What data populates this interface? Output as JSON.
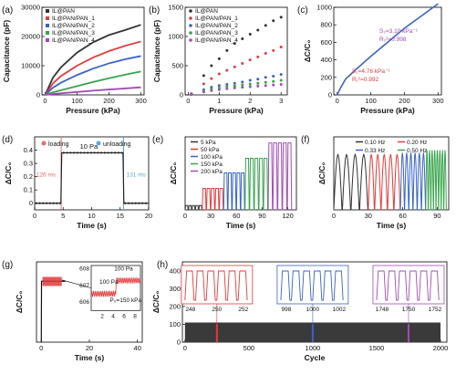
{
  "colors": {
    "black": "#333333",
    "red": "#e23b3b",
    "blue": "#3a63c6",
    "green": "#38a44c",
    "purple": "#a24ab8",
    "bg_band": "#e8e8e8"
  },
  "chart_data": [
    {
      "id": "a",
      "panel_label": "(a)",
      "type": "line",
      "xlabel": "Pressure (kPa)",
      "ylabel": "Capacitance (pF)",
      "xlim": [
        -10,
        310
      ],
      "ylim": [
        0,
        30000
      ],
      "xticks": [
        0,
        100,
        200,
        300
      ],
      "yticks": [
        0,
        10000,
        20000,
        30000
      ],
      "series": [
        {
          "name": "IL@PAN",
          "color": "black",
          "x": [
            0,
            25,
            50,
            100,
            150,
            200,
            250,
            300
          ],
          "y": [
            0,
            6000,
            9500,
            14500,
            18000,
            20500,
            22200,
            24000
          ]
        },
        {
          "name": "IL@PAN/PAN_1",
          "color": "red",
          "x": [
            0,
            25,
            50,
            100,
            150,
            200,
            250,
            300
          ],
          "y": [
            0,
            4000,
            6500,
            10000,
            12800,
            15000,
            16800,
            18300
          ]
        },
        {
          "name": "IL@PAN/PAN_2",
          "color": "blue",
          "x": [
            0,
            25,
            50,
            100,
            150,
            200,
            250,
            300
          ],
          "y": [
            0,
            2500,
            4200,
            6800,
            9000,
            10800,
            12200,
            13300
          ]
        },
        {
          "name": "IL@PAN/PAN_3",
          "color": "green",
          "x": [
            0,
            25,
            50,
            100,
            150,
            200,
            250,
            300
          ],
          "y": [
            0,
            900,
            1600,
            3000,
            4400,
            5700,
            6900,
            8000
          ]
        },
        {
          "name": "IL@PAN/PAN_4",
          "color": "purple",
          "x": [
            0,
            25,
            50,
            100,
            150,
            200,
            250,
            300
          ],
          "y": [
            0,
            300,
            550,
            1000,
            1450,
            1850,
            2200,
            2600
          ]
        }
      ]
    },
    {
      "id": "b",
      "panel_label": "(b)",
      "type": "scatter",
      "xlabel": "Pressure (kPa)",
      "ylabel": "Capacitance (pF)",
      "xlim": [
        -0.1,
        3.2
      ],
      "ylim": [
        0,
        1500
      ],
      "xticks": [
        0,
        1,
        2,
        3
      ],
      "yticks": [
        0,
        500,
        1000,
        1500
      ],
      "series": [
        {
          "name": "IL@PAN",
          "color": "black",
          "x": [
            0.1,
            0.5,
            0.75,
            1,
            1.25,
            1.5,
            1.75,
            2,
            2.25,
            2.5,
            2.75,
            3
          ],
          "y": [
            20,
            330,
            500,
            620,
            760,
            880,
            960,
            1040,
            1110,
            1190,
            1270,
            1330
          ]
        },
        {
          "name": "IL@PAN/PAN_1",
          "color": "red",
          "x": [
            0.1,
            0.5,
            0.75,
            1,
            1.25,
            1.5,
            1.75,
            2,
            2.25,
            2.5,
            2.75,
            3
          ],
          "y": [
            15,
            190,
            280,
            360,
            420,
            480,
            540,
            600,
            650,
            710,
            760,
            820
          ]
        },
        {
          "name": "IL@PAN/PAN_2",
          "color": "blue",
          "x": [
            0.1,
            0.5,
            0.75,
            1,
            1.25,
            1.5,
            1.75,
            2,
            2.25,
            2.5,
            2.75,
            3
          ],
          "y": [
            10,
            90,
            130,
            160,
            180,
            200,
            220,
            250,
            270,
            300,
            320,
            350
          ]
        },
        {
          "name": "IL@PAN/PAN_3",
          "color": "green",
          "x": [
            0.1,
            0.5,
            0.75,
            1,
            1.25,
            1.5,
            1.75,
            2,
            2.25,
            2.5,
            2.75,
            3
          ],
          "y": [
            8,
            70,
            100,
            120,
            140,
            155,
            170,
            185,
            200,
            215,
            230,
            250
          ]
        },
        {
          "name": "IL@PAN/PAN_4",
          "color": "purple",
          "x": [
            0.1,
            0.5,
            0.75,
            1,
            1.25,
            1.5,
            1.75,
            2,
            2.25,
            2.5,
            2.75,
            3
          ],
          "y": [
            5,
            50,
            75,
            90,
            105,
            120,
            130,
            140,
            150,
            160,
            170,
            180
          ]
        }
      ]
    },
    {
      "id": "c",
      "panel_label": "(c)",
      "type": "line",
      "xlabel": "Pressure (kPa)",
      "ylabel": "ΔC/C₀",
      "xlim": [
        -10,
        310
      ],
      "ylim": [
        0,
        1000
      ],
      "xticks": [
        0,
        100,
        200,
        300
      ],
      "yticks": [
        0,
        200,
        400,
        600,
        800,
        1000
      ],
      "annotations": [
        {
          "text": "S₂=3.10 kPa⁻¹"
        },
        {
          "text": "R₂²=0.998"
        },
        {
          "text": "S₁=4.76 kPa⁻¹"
        },
        {
          "text": "R₁²=0.992"
        }
      ],
      "series": [
        {
          "color": "blue",
          "x": [
            0,
            10,
            25,
            50,
            100,
            150,
            200,
            250,
            300
          ],
          "y": [
            0,
            80,
            180,
            270,
            440,
            600,
            760,
            900,
            1040
          ]
        }
      ]
    },
    {
      "id": "d",
      "panel_label": "(d)",
      "type": "line",
      "xlabel": "Time (s)",
      "ylabel": "ΔC/C₀",
      "xlim": [
        0,
        20
      ],
      "ylim": [
        -0.05,
        0.5
      ],
      "xticks": [
        0,
        5,
        10,
        15,
        20
      ],
      "yticks": [
        0,
        0.1,
        0.2,
        0.3,
        0.4
      ],
      "legend": [
        "loading",
        "unloading"
      ],
      "legend_colors": [
        "#e86a6a",
        "#5aa7d8"
      ],
      "annotations": [
        {
          "text": "10 Pa"
        },
        {
          "text": "126 ms"
        },
        {
          "text": "131 ms"
        }
      ],
      "series": [
        {
          "color": "black",
          "x": [
            0,
            4.6,
            4.75,
            15.5,
            15.65,
            20
          ],
          "y": [
            0,
            0,
            0.38,
            0.38,
            0,
            0
          ]
        }
      ]
    },
    {
      "id": "e",
      "panel_label": "(e)",
      "type": "line",
      "xlabel": "Time (s)",
      "ylabel": "ΔC/C₀",
      "xlim": [
        0,
        130
      ],
      "ylim": [
        0,
        850
      ],
      "xticks": [
        0,
        30,
        60,
        90,
        120
      ],
      "yticks": [],
      "series": [
        {
          "name": "5 kPa",
          "color": "black",
          "x_range": [
            0,
            20
          ],
          "peak": 50
        },
        {
          "name": "50 kPa",
          "color": "red",
          "x_range": [
            20,
            45
          ],
          "peak": 250
        },
        {
          "name": "100 kPa",
          "color": "blue",
          "x_range": [
            45,
            70
          ],
          "peak": 430
        },
        {
          "name": "150 kPa",
          "color": "green",
          "x_range": [
            70,
            97
          ],
          "peak": 600
        },
        {
          "name": "200 kPa",
          "color": "purple",
          "x_range": [
            97,
            125
          ],
          "peak": 780
        }
      ]
    },
    {
      "id": "f",
      "panel_label": "(f)",
      "type": "line",
      "xlabel": "Time (s)",
      "ylabel": "ΔC/C₀",
      "xlim": [
        0,
        100
      ],
      "ylim": [
        0,
        550
      ],
      "xticks": [
        0,
        30,
        60,
        90
      ],
      "yticks": [],
      "series": [
        {
          "name": "0.10 Hz",
          "color": "black",
          "x_range": [
            0,
            30
          ],
          "cycles": 4,
          "peak": 420
        },
        {
          "name": "0.20 Hz",
          "color": "red",
          "x_range": [
            30,
            58
          ],
          "cycles": 5,
          "peak": 420
        },
        {
          "name": "0.33 Hz",
          "color": "blue",
          "x_range": [
            58,
            80
          ],
          "cycles": 6,
          "peak": 430
        },
        {
          "name": "0.50 Hz",
          "color": "green",
          "x_range": [
            80,
            98
          ],
          "cycles": 8,
          "peak": 450
        }
      ]
    },
    {
      "id": "g",
      "panel_label": "(g)",
      "type": "line",
      "xlabel": "Time (s)",
      "ylabel": "ΔC/C₀",
      "xlim": [
        -2,
        42
      ],
      "ylim": [
        0,
        800
      ],
      "xticks": [
        0,
        20,
        40
      ],
      "yticks": [],
      "series": [
        {
          "color": "black",
          "x": [
            0,
            0.1,
            10
          ],
          "y": [
            0,
            607,
            607
          ]
        }
      ],
      "inset": {
        "xlim": [
          0,
          9
        ],
        "ylim": [
          605.5,
          608.2
        ],
        "xticks": [
          2,
          4,
          6,
          8
        ],
        "yticks": [
          606,
          607,
          608
        ],
        "annotations": [
          {
            "text": "100 Pa"
          },
          {
            "text": "100 Pa"
          },
          {
            "text": "P₀=150 kPa"
          }
        ],
        "series": [
          {
            "color": "red",
            "x": [
              0,
              4.4,
              4.6,
              9
            ],
            "y": [
              606.5,
              606.5,
              607.3,
              607.3
            ]
          }
        ]
      }
    },
    {
      "id": "h",
      "panel_label": "(h)",
      "type": "line",
      "xlabel": "Cycle",
      "ylabel": "ΔC/C₀",
      "xlim": [
        -20,
        2050
      ],
      "ylim": [
        0,
        450
      ],
      "xticks": [
        0,
        500,
        1000,
        1500,
        2000
      ],
      "yticks": [
        0,
        100,
        200,
        300,
        400
      ],
      "series": [
        {
          "color": "black",
          "x_range": [
            0,
            2000
          ],
          "min": 0,
          "max": 440
        }
      ],
      "insets": [
        {
          "color": "red",
          "xticks": [
            248,
            250,
            252
          ],
          "cycles": 6
        },
        {
          "color": "blue",
          "xticks": [
            998,
            1000,
            1002
          ],
          "cycles": 6
        },
        {
          "color": "purple",
          "xticks": [
            1748,
            1750,
            1752
          ],
          "cycles": 6
        }
      ]
    }
  ]
}
